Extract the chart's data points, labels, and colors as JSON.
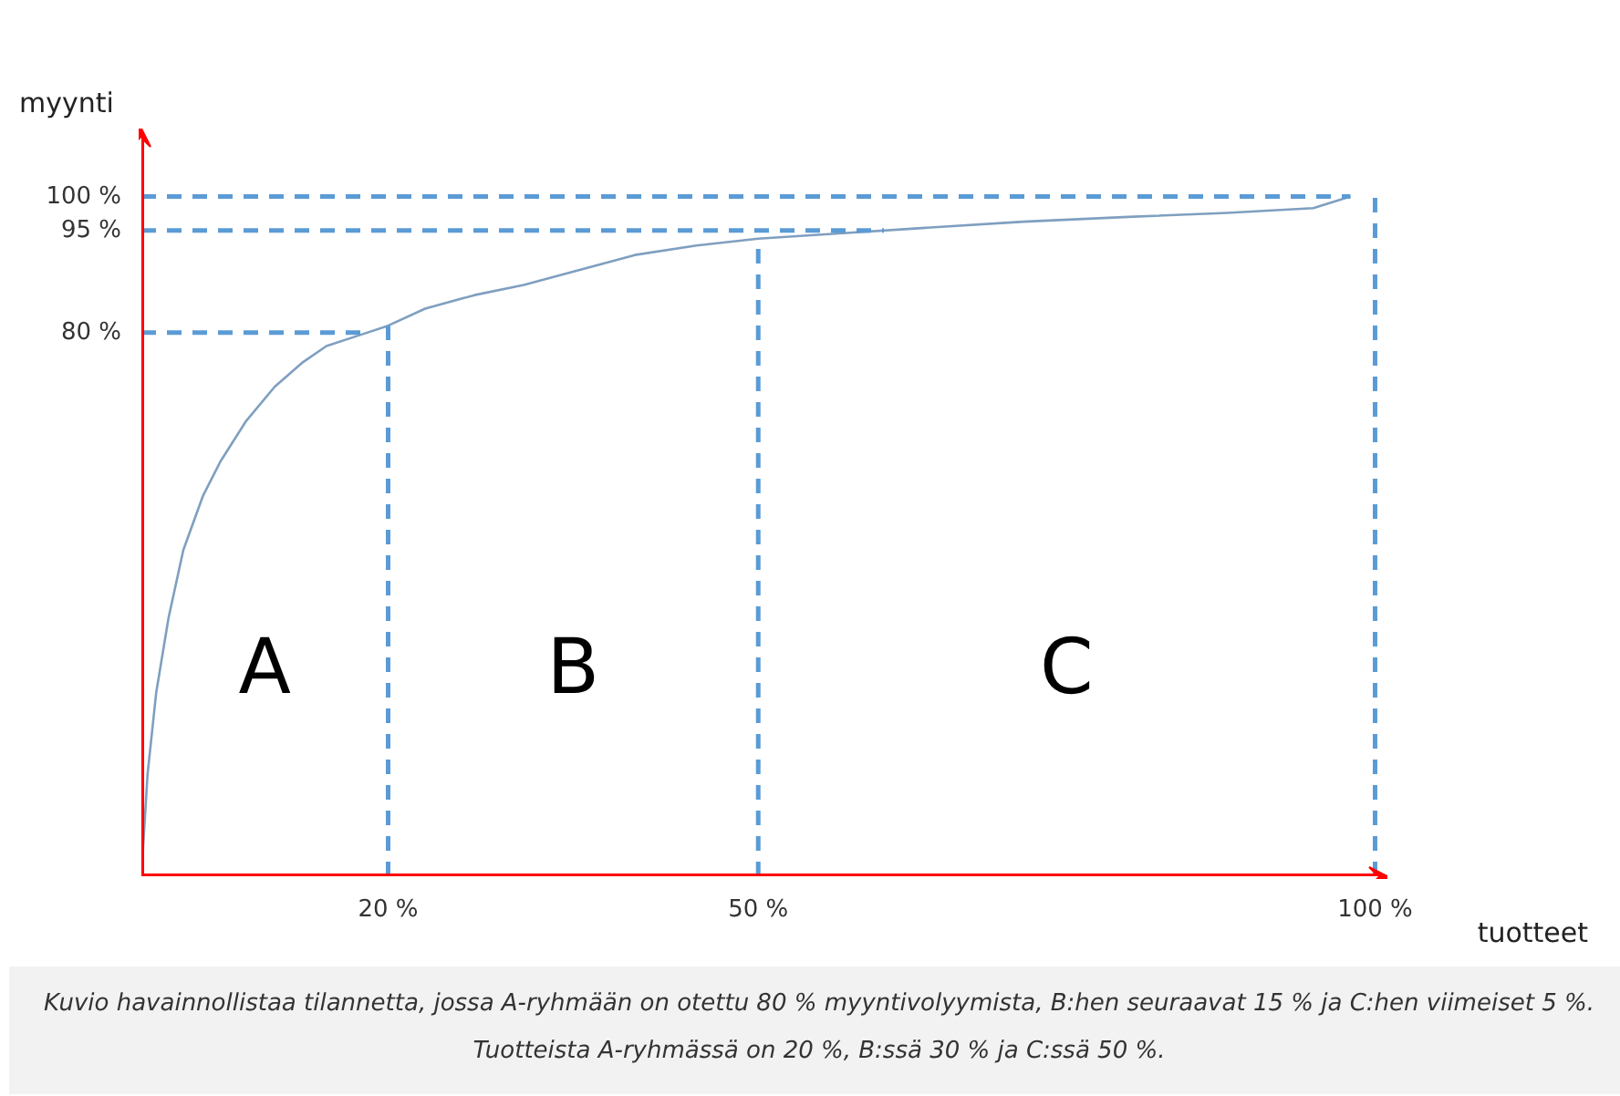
{
  "chart_data": {
    "type": "line",
    "xlabel": "tuotteet",
    "ylabel": "myynti",
    "series": [
      {
        "color": "#7f9fc0",
        "x": [
          0,
          0.5,
          1.2,
          2.2,
          3.4,
          5,
          6.4,
          8.5,
          10.8,
          13,
          15,
          17.5,
          20,
          23,
          27,
          31,
          34.5,
          40,
          45,
          50,
          56,
          62.7,
          71.5,
          80,
          88,
          95,
          98
        ],
        "values": [
          0,
          15,
          27,
          38,
          48,
          56,
          61,
          67,
          72,
          75.5,
          78,
          79.5,
          81,
          83.5,
          85.5,
          87,
          88.7,
          91.4,
          92.8,
          93.8,
          94.5,
          95.3,
          96.3,
          97,
          97.6,
          98.3,
          100
        ]
      }
    ],
    "xlim": [
      0,
      101
    ],
    "ylim": [
      0,
      110
    ],
    "xticks": [
      {
        "value": 20,
        "label": "20 %"
      },
      {
        "value": 50,
        "label": "50 %"
      },
      {
        "value": 100,
        "label": "100 %"
      }
    ],
    "yticks": [
      {
        "value": 80,
        "label": "80 %"
      },
      {
        "value": 95,
        "label": "95 %"
      },
      {
        "value": 100,
        "label": "100 %"
      }
    ],
    "ref_lines": [
      {
        "axis": "y",
        "value": 80,
        "color": "#5b9bd5",
        "line_style": "dashed"
      },
      {
        "axis": "y",
        "value": 95,
        "color": "#5b9bd5",
        "line_style": "dashed"
      },
      {
        "axis": "y",
        "value": 100,
        "color": "#5b9bd5",
        "line_style": "dashed"
      },
      {
        "axis": "x",
        "value": 20,
        "color": "#5b9bd5",
        "line_style": "dashed"
      },
      {
        "axis": "x",
        "value": 50,
        "color": "#5b9bd5",
        "line_style": "dashed"
      },
      {
        "axis": "x",
        "value": 100,
        "color": "#5b9bd5",
        "line_style": "dashed"
      }
    ],
    "annotations": [
      "A",
      "B",
      "C",
      "Kuvio havainnollistaa tilannetta, jossa A-ryhmään on otettu 80 % myyntivolyymista, B:hen seuraavat 15 % ja C:hen viimeiset 5 %. Tuotteista A-ryhmässä on 20 %, B:ssä 30 % ja C:ssä 50 %."
    ]
  }
}
